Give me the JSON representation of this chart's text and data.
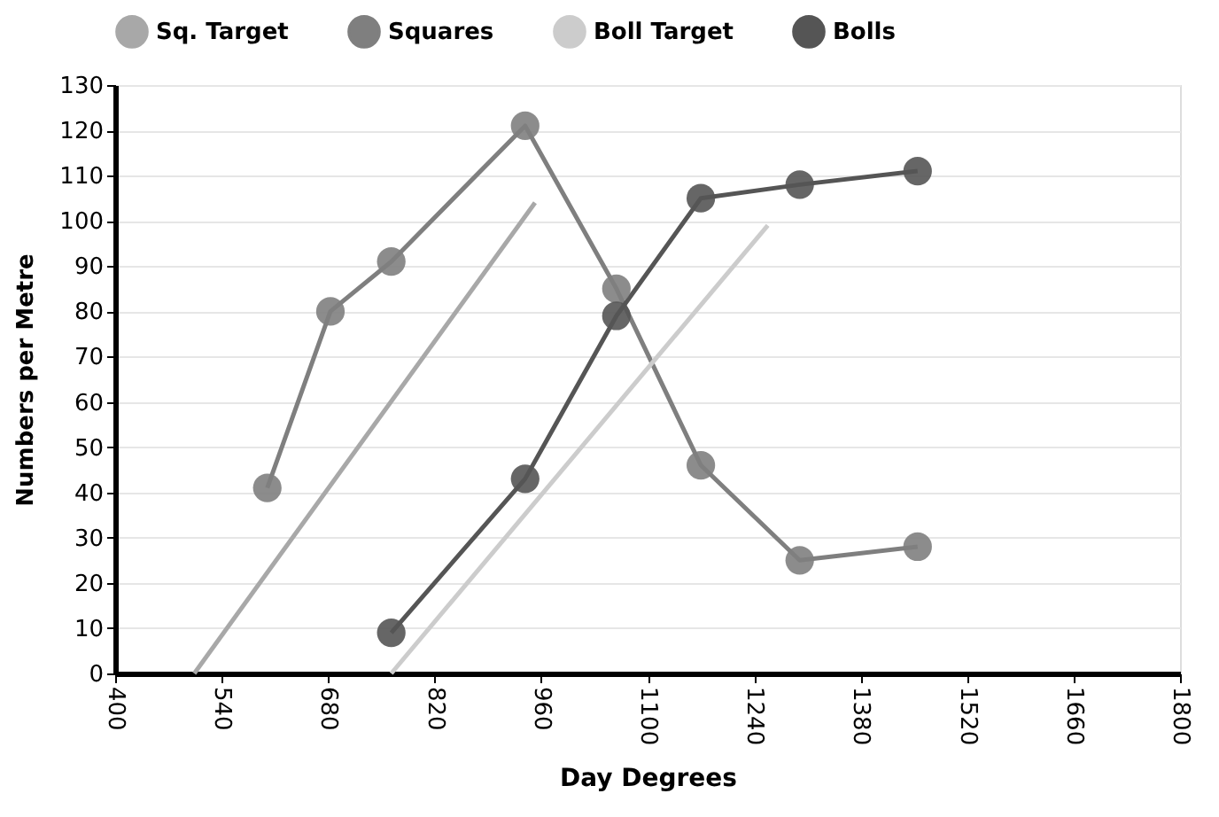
{
  "chart_data": {
    "type": "line",
    "xlabel": "Day Degrees",
    "ylabel": "Numbers per Metre",
    "xlim": [
      400,
      1800
    ],
    "xticks": [
      400,
      540,
      680,
      820,
      960,
      1100,
      1240,
      1380,
      1520,
      1660,
      1800
    ],
    "ylim": [
      0,
      130
    ],
    "yticks": [
      0,
      10,
      20,
      30,
      40,
      50,
      60,
      70,
      80,
      90,
      100,
      110,
      120,
      130
    ],
    "grid": "y",
    "legend": "top",
    "marker": "circle",
    "line_style": "solid",
    "series": [
      {
        "name": "Sq. Target",
        "color": "#a8a8a8",
        "marker": "none",
        "x": [
          504,
          952
        ],
        "values": [
          0,
          104
        ]
      },
      {
        "name": "Squares",
        "color": "#7f7f7f",
        "x": [
          600,
          683,
          763,
          939,
          1059,
          1170,
          1300,
          1455
        ],
        "values": [
          41,
          80,
          91,
          121,
          85,
          46,
          25,
          28
        ]
      },
      {
        "name": "Boll Target",
        "color": "#cccccc",
        "marker": "none",
        "x": [
          763,
          1258
        ],
        "values": [
          0,
          99
        ]
      },
      {
        "name": "Bolls",
        "color": "#555555",
        "x": [
          763,
          939,
          1059,
          1170,
          1300,
          1455
        ],
        "values": [
          9,
          43,
          79,
          105,
          108,
          111
        ]
      }
    ]
  }
}
